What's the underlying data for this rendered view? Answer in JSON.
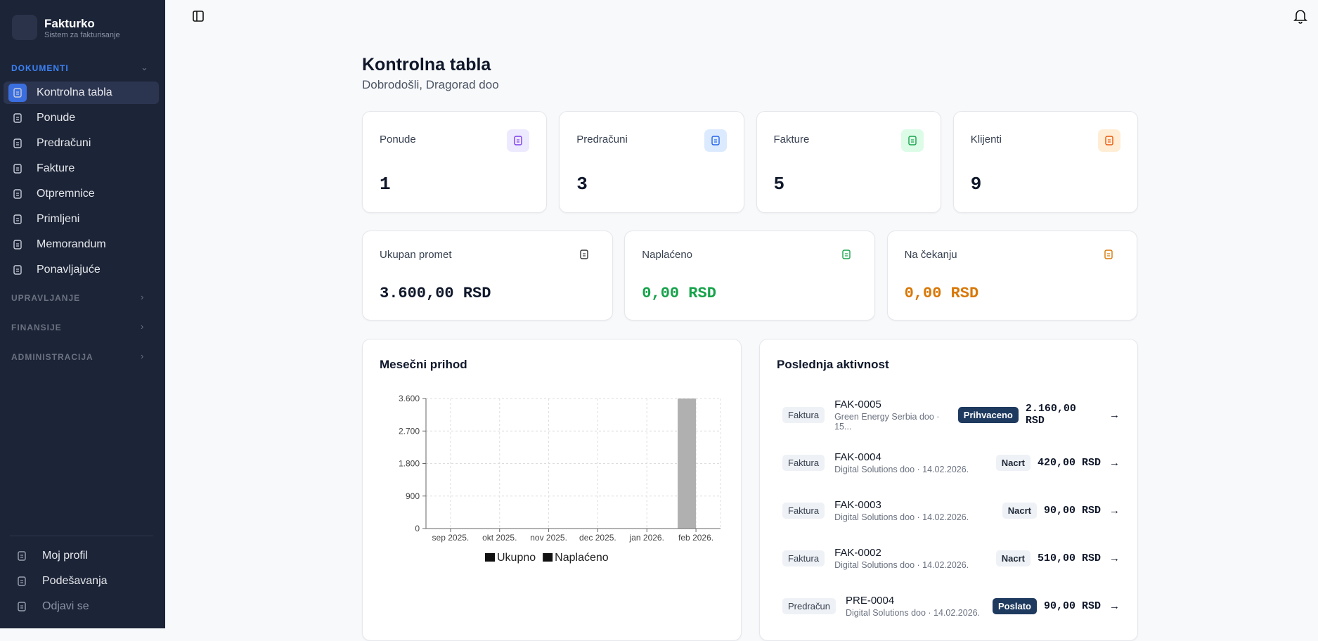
{
  "sidebar": {
    "brand": "Fakturko",
    "tagline": "Sistem za fakturisanje",
    "sections": [
      {
        "title": "DOKUMENTI",
        "items": [
          "Kontrolna tabla",
          "Ponude",
          "Predračuni",
          "Fakture",
          "Otpremnice",
          "Primljeni",
          "Memorandum",
          "Ponavljajuće"
        ]
      },
      {
        "title": "UPRAVLJANJE"
      },
      {
        "title": "FINANSIJE"
      },
      {
        "title": "ADMINISTRACIJA"
      }
    ],
    "footer": [
      "Moj profil",
      "Podešavanja",
      "Odjavi se"
    ]
  },
  "header": {
    "title": "Kontrolna tabla",
    "subtitle": "Dobrodošli, Dragorad doo"
  },
  "stats": [
    {
      "label": "Ponude",
      "value": 1
    },
    {
      "label": "Predračuni",
      "value": 3
    },
    {
      "label": "Fakture",
      "value": 5
    },
    {
      "label": "Klijenti",
      "value": 9
    }
  ],
  "totals": [
    {
      "label": "Ukupan promet",
      "value": "3.600,00 RSD"
    },
    {
      "label": "Naplaćeno",
      "value": "0,00 RSD"
    },
    {
      "label": "Na čekanju",
      "value": "0,00 RSD"
    }
  ],
  "chart_data": {
    "type": "bar",
    "title": "Mesečni prihod",
    "categories": [
      "sep 2025.",
      "okt 2025.",
      "nov 2025.",
      "dec 2025.",
      "jan 2026.",
      "feb 2026."
    ],
    "series": [
      {
        "name": "Ukupno",
        "color": "#b0b0b0",
        "values": [
          0,
          0,
          0,
          0,
          0,
          3600
        ]
      },
      {
        "name": "Naplaćeno",
        "color": "#808080",
        "values": [
          0,
          0,
          0,
          0,
          0,
          0
        ]
      }
    ],
    "ylim": [
      0,
      3600
    ],
    "yticks": [
      0,
      900,
      {
        "value": 1800,
        "label": "1.800"
      },
      {
        "value": 2700,
        "label": "2.700"
      },
      {
        "value": 3600,
        "label": "3.600"
      }
    ],
    "grid": true
  },
  "activity": {
    "title": "Poslednja aktivnost",
    "items": [
      {
        "type": "Faktura",
        "number": "FAK-0005",
        "detail": "Green Energy Serbia doo · 15...",
        "status": "Prihvaceno",
        "amount": "2.160,00 RSD"
      },
      {
        "type": "Faktura",
        "number": "FAK-0004",
        "detail": "Digital Solutions doo · 14.02.2026.",
        "status": "Nacrt",
        "amount": "420,00 RSD"
      },
      {
        "type": "Faktura",
        "number": "FAK-0003",
        "detail": "Digital Solutions doo · 14.02.2026.",
        "status": "Nacrt",
        "amount": "90,00 RSD"
      },
      {
        "type": "Faktura",
        "number": "FAK-0002",
        "detail": "Digital Solutions doo · 14.02.2026.",
        "status": "Nacrt",
        "amount": "510,00 RSD"
      },
      {
        "type": "Predračun",
        "number": "PRE-0004",
        "detail": "Digital Solutions doo · 14.02.2026.",
        "status": "Poslato",
        "amount": "90,00 RSD"
      }
    ]
  }
}
